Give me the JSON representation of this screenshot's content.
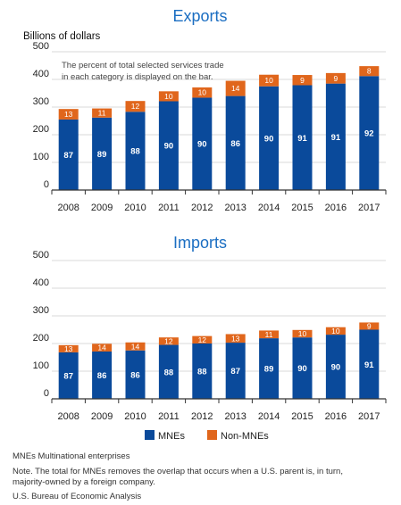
{
  "colors": {
    "mnes": "#0a4a9b",
    "non_mnes": "#e0661c",
    "title": "#1b6ec2",
    "axis": "#333333",
    "grid": "#d9d9d9"
  },
  "chart_data": [
    {
      "type": "bar",
      "stacked": true,
      "title": "Exports",
      "ylabel": "Billions of dollars",
      "annotation_line1": "The percent of total selected services trade",
      "annotation_line2": "in each category is displayed on the bar.",
      "categories": [
        "2008",
        "2009",
        "2010",
        "2011",
        "2012",
        "2013",
        "2014",
        "2015",
        "2016",
        "2017"
      ],
      "ylim": [
        0,
        500
      ],
      "yticks": [
        "0",
        "100",
        "200",
        "300",
        "400",
        "500"
      ],
      "series": [
        {
          "name": "MNEs",
          "values": [
            255,
            262,
            283,
            321,
            334,
            340,
            375,
            379,
            385,
            412
          ],
          "labels": [
            "87",
            "89",
            "88",
            "90",
            "90",
            "86",
            "90",
            "91",
            "91",
            "92"
          ]
        },
        {
          "name": "Non-MNEs",
          "values": [
            38,
            33,
            39,
            36,
            37,
            55,
            42,
            37,
            38,
            36
          ],
          "labels": [
            "13",
            "11",
            "12",
            "10",
            "10",
            "14",
            "10",
            "9",
            "9",
            "8"
          ]
        }
      ]
    },
    {
      "type": "bar",
      "stacked": true,
      "title": "Imports",
      "categories": [
        "2008",
        "2009",
        "2010",
        "2011",
        "2012",
        "2013",
        "2014",
        "2015",
        "2016",
        "2017"
      ],
      "ylim": [
        0,
        500
      ],
      "yticks": [
        "0",
        "100",
        "200",
        "300",
        "400",
        "500"
      ],
      "series": [
        {
          "name": "MNEs",
          "values": [
            168,
            171,
            175,
            195,
            200,
            203,
            219,
            222,
            232,
            250
          ],
          "labels": [
            "87",
            "86",
            "86",
            "88",
            "88",
            "87",
            "89",
            "90",
            "90",
            "91"
          ]
        },
        {
          "name": "Non-MNEs",
          "values": [
            26,
            28,
            29,
            27,
            27,
            31,
            28,
            27,
            27,
            26
          ],
          "labels": [
            "13",
            "14",
            "14",
            "12",
            "12",
            "13",
            "11",
            "10",
            "10",
            "9"
          ]
        }
      ]
    }
  ],
  "legend": {
    "mnes_label": "MNEs",
    "non_mnes_label": "Non-MNEs"
  },
  "footer": {
    "abbreviation": "MNEs Multinational enterprises",
    "note_line1": "Note. The total for MNEs removes the overlap that occurs when a U.S. parent is, in turn,",
    "note_line2": "majority-owned by a foreign company.",
    "source": "U.S. Bureau of Economic Analysis"
  }
}
